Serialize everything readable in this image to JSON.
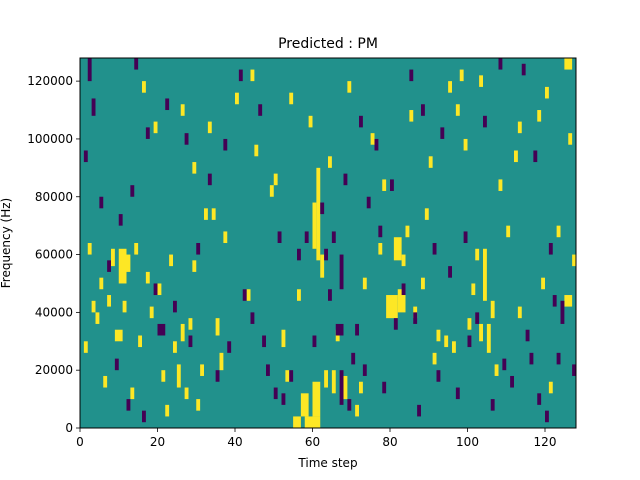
{
  "chart_data": {
    "type": "heatmap",
    "title": "Predicted : PM",
    "xlabel": "Time step",
    "ylabel": "Frequency (Hz)",
    "xlim": [
      0,
      128
    ],
    "ylim": [
      0,
      128000
    ],
    "x_ticks": [
      0,
      20,
      40,
      60,
      80,
      100,
      120
    ],
    "x_tick_labels": [
      "0",
      "20",
      "40",
      "60",
      "80",
      "100",
      "120"
    ],
    "y_ticks": [
      0,
      20000,
      40000,
      60000,
      80000,
      100000,
      120000
    ],
    "y_tick_labels": [
      "0",
      "20000",
      "40000",
      "60000",
      "80000",
      "100000",
      "120000"
    ],
    "colormap": "viridis",
    "background_color": "#21918c",
    "low_color": "#440154",
    "high_color": "#fde725",
    "grid": false,
    "cells": {
      "high": [
        [
          57,
          4000,
          2,
          8000
        ],
        [
          60,
          4000,
          2,
          12000
        ],
        [
          58,
          0,
          4,
          4000
        ],
        [
          55,
          0,
          2,
          4000
        ],
        [
          61,
          58000,
          1,
          32000
        ],
        [
          60,
          62000,
          1,
          16000
        ],
        [
          62,
          52000,
          1,
          8000
        ],
        [
          68,
          10000,
          1,
          8000
        ],
        [
          71,
          4000,
          1,
          4000
        ],
        [
          65,
          12000,
          1,
          8000
        ],
        [
          63,
          14000,
          1,
          6000
        ],
        [
          79,
          38000,
          3,
          8000
        ],
        [
          82,
          40000,
          2,
          8000
        ],
        [
          81,
          58000,
          2,
          8000
        ],
        [
          83,
          56000,
          1,
          4000
        ],
        [
          104,
          44000,
          1,
          18000
        ],
        [
          105,
          26000,
          1,
          10000
        ],
        [
          106,
          38000,
          1,
          6000
        ],
        [
          103,
          30000,
          1,
          6000
        ],
        [
          10,
          50000,
          2,
          12000
        ],
        [
          12,
          54000,
          1,
          6000
        ],
        [
          8,
          56000,
          1,
          6000
        ],
        [
          9,
          30000,
          2,
          4000
        ],
        [
          11,
          40000,
          1,
          4000
        ],
        [
          7,
          42000,
          1,
          4000
        ],
        [
          25,
          14000,
          1,
          8000
        ],
        [
          26,
          30000,
          1,
          6000
        ],
        [
          27,
          10000,
          1,
          4000
        ],
        [
          24,
          26000,
          1,
          4000
        ],
        [
          125,
          124000,
          2,
          4000
        ],
        [
          125,
          42000,
          2,
          4000
        ],
        [
          98,
          120000,
          1,
          4000
        ],
        [
          84,
          66000,
          1,
          4000
        ],
        [
          91,
          22000,
          1,
          4000
        ],
        [
          36,
          20000,
          1,
          6000
        ],
        [
          35,
          32000,
          1,
          6000
        ],
        [
          43,
          44000,
          1,
          4000
        ],
        [
          52,
          28000,
          1,
          6000
        ],
        [
          53,
          16000,
          1,
          4000
        ],
        [
          72,
          12000,
          1,
          4000
        ],
        [
          29,
          54000,
          1,
          4000
        ],
        [
          31,
          18000,
          1,
          4000
        ],
        [
          94,
          28000,
          1,
          4000
        ],
        [
          3,
          40000,
          1,
          4000
        ],
        [
          5,
          48000,
          1,
          4000
        ],
        [
          14,
          60000,
          1,
          4000
        ],
        [
          17,
          50000,
          1,
          4000
        ],
        [
          20,
          46000,
          1,
          4000
        ],
        [
          23,
          56000,
          1,
          4000
        ],
        [
          32,
          72000,
          1,
          4000
        ],
        [
          34,
          72000,
          1,
          4000
        ],
        [
          37,
          64000,
          1,
          4000
        ],
        [
          45,
          94000,
          1,
          4000
        ],
        [
          49,
          80000,
          1,
          4000
        ],
        [
          56,
          44000,
          1,
          4000
        ],
        [
          66,
          30000,
          1,
          4000
        ],
        [
          73,
          48000,
          1,
          4000
        ],
        [
          77,
          60000,
          1,
          4000
        ],
        [
          86,
          38000,
          1,
          4000
        ],
        [
          88,
          48000,
          1,
          4000
        ],
        [
          89,
          72000,
          1,
          4000
        ],
        [
          92,
          30000,
          1,
          4000
        ],
        [
          96,
          26000,
          1,
          4000
        ],
        [
          100,
          34000,
          1,
          4000
        ],
        [
          101,
          46000,
          1,
          4000
        ],
        [
          102,
          58000,
          1,
          4000
        ],
        [
          107,
          18000,
          1,
          4000
        ],
        [
          110,
          66000,
          1,
          4000
        ],
        [
          113,
          38000,
          1,
          4000
        ],
        [
          119,
          48000,
          1,
          4000
        ],
        [
          121,
          12000,
          1,
          4000
        ],
        [
          123,
          66000,
          1,
          4000
        ],
        [
          127,
          56000,
          1,
          4000
        ],
        [
          97,
          108000,
          1,
          4000
        ],
        [
          99,
          96000,
          1,
          4000
        ],
        [
          108,
          82000,
          1,
          4000
        ],
        [
          112,
          92000,
          1,
          4000
        ],
        [
          118,
          106000,
          1,
          4000
        ],
        [
          126,
          98000,
          1,
          4000
        ],
        [
          16,
          116000,
          1,
          4000
        ],
        [
          19,
          102000,
          1,
          4000
        ],
        [
          26,
          108000,
          1,
          4000
        ],
        [
          29,
          88000,
          1,
          4000
        ],
        [
          33,
          102000,
          1,
          4000
        ],
        [
          40,
          112000,
          1,
          4000
        ],
        [
          44,
          120000,
          1,
          4000
        ],
        [
          50,
          84000,
          1,
          4000
        ],
        [
          54,
          112000,
          1,
          4000
        ],
        [
          59,
          104000,
          1,
          4000
        ],
        [
          64,
          90000,
          1,
          4000
        ],
        [
          69,
          116000,
          1,
          4000
        ],
        [
          75,
          98000,
          1,
          4000
        ],
        [
          78,
          82000,
          1,
          4000
        ],
        [
          85,
          106000,
          1,
          4000
        ],
        [
          90,
          90000,
          1,
          4000
        ],
        [
          95,
          116000,
          1,
          4000
        ],
        [
          103,
          118000,
          1,
          4000
        ],
        [
          113,
          102000,
          1,
          4000
        ],
        [
          120,
          114000,
          1,
          4000
        ],
        [
          1,
          26000,
          1,
          4000
        ],
        [
          2,
          60000,
          1,
          4000
        ],
        [
          4,
          36000,
          1,
          4000
        ],
        [
          6,
          14000,
          1,
          4000
        ],
        [
          13,
          10000,
          1,
          4000
        ],
        [
          15,
          28000,
          1,
          4000
        ],
        [
          18,
          38000,
          1,
          4000
        ],
        [
          21,
          16000,
          1,
          4000
        ],
        [
          22,
          4000,
          1,
          4000
        ],
        [
          28,
          34000,
          1,
          4000
        ],
        [
          30,
          6000,
          1,
          4000
        ]
      ],
      "low": [
        [
          67,
          8000,
          1,
          12000
        ],
        [
          69,
          6000,
          1,
          4000
        ],
        [
          66,
          32000,
          2,
          4000
        ],
        [
          67,
          48000,
          1,
          12000
        ],
        [
          54,
          16000,
          1,
          4000
        ],
        [
          70,
          22000,
          1,
          4000
        ],
        [
          63,
          58000,
          1,
          4000
        ],
        [
          65,
          64000,
          1,
          4000
        ],
        [
          20,
          32000,
          2,
          4000
        ],
        [
          124,
          36000,
          1,
          8000
        ],
        [
          122,
          42000,
          1,
          4000
        ],
        [
          2,
          120000,
          1,
          8000
        ],
        [
          3,
          108000,
          1,
          6000
        ],
        [
          1,
          92000,
          1,
          4000
        ],
        [
          86,
          36000,
          1,
          4000
        ],
        [
          28,
          28000,
          1,
          4000
        ],
        [
          42,
          44000,
          1,
          4000
        ],
        [
          44,
          36000,
          1,
          4000
        ],
        [
          47,
          28000,
          1,
          4000
        ],
        [
          48,
          18000,
          1,
          4000
        ],
        [
          50,
          10000,
          1,
          4000
        ],
        [
          52,
          8000,
          1,
          4000
        ],
        [
          58,
          64000,
          1,
          4000
        ],
        [
          62,
          74000,
          1,
          4000
        ],
        [
          68,
          84000,
          1,
          4000
        ],
        [
          74,
          76000,
          1,
          4000
        ],
        [
          76,
          96000,
          1,
          4000
        ],
        [
          80,
          82000,
          1,
          4000
        ],
        [
          85,
          120000,
          1,
          4000
        ],
        [
          88,
          108000,
          1,
          4000
        ],
        [
          93,
          100000,
          1,
          4000
        ],
        [
          99,
          64000,
          1,
          4000
        ],
        [
          104,
          104000,
          1,
          4000
        ],
        [
          108,
          124000,
          1,
          4000
        ],
        [
          114,
          122000,
          1,
          4000
        ],
        [
          117,
          92000,
          1,
          4000
        ],
        [
          121,
          60000,
          1,
          4000
        ],
        [
          127,
          18000,
          1,
          4000
        ],
        [
          14,
          124000,
          1,
          4000
        ],
        [
          17,
          100000,
          1,
          4000
        ],
        [
          22,
          110000,
          1,
          4000
        ],
        [
          27,
          98000,
          1,
          4000
        ],
        [
          33,
          84000,
          1,
          4000
        ],
        [
          37,
          96000,
          1,
          4000
        ],
        [
          41,
          120000,
          1,
          4000
        ],
        [
          46,
          108000,
          1,
          4000
        ],
        [
          51,
          64000,
          1,
          4000
        ],
        [
          56,
          58000,
          1,
          4000
        ],
        [
          72,
          104000,
          1,
          4000
        ],
        [
          77,
          66000,
          1,
          4000
        ],
        [
          83,
          46000,
          1,
          4000
        ],
        [
          91,
          60000,
          1,
          4000
        ],
        [
          95,
          52000,
          1,
          4000
        ],
        [
          100,
          28000,
          1,
          4000
        ],
        [
          109,
          20000,
          1,
          4000
        ],
        [
          115,
          30000,
          1,
          4000
        ],
        [
          118,
          8000,
          1,
          4000
        ],
        [
          123,
          22000,
          1,
          4000
        ],
        [
          9,
          20000,
          1,
          4000
        ],
        [
          12,
          6000,
          1,
          4000
        ],
        [
          16,
          2000,
          1,
          4000
        ],
        [
          19,
          46000,
          1,
          4000
        ],
        [
          24,
          40000,
          1,
          4000
        ],
        [
          30,
          60000,
          1,
          4000
        ],
        [
          35,
          16000,
          1,
          4000
        ],
        [
          38,
          26000,
          1,
          4000
        ],
        [
          60,
          28000,
          1,
          4000
        ],
        [
          64,
          44000,
          1,
          4000
        ],
        [
          71,
          32000,
          1,
          4000
        ],
        [
          73,
          18000,
          1,
          4000
        ],
        [
          78,
          12000,
          1,
          4000
        ],
        [
          81,
          34000,
          1,
          4000
        ],
        [
          87,
          4000,
          1,
          4000
        ],
        [
          92,
          16000,
          1,
          4000
        ],
        [
          97,
          10000,
          1,
          4000
        ],
        [
          102,
          36000,
          1,
          4000
        ],
        [
          106,
          6000,
          1,
          4000
        ],
        [
          111,
          14000,
          1,
          4000
        ],
        [
          116,
          22000,
          1,
          4000
        ],
        [
          120,
          2000,
          1,
          4000
        ],
        [
          5,
          76000,
          1,
          4000
        ],
        [
          7,
          54000,
          1,
          4000
        ],
        [
          10,
          70000,
          1,
          4000
        ],
        [
          13,
          80000,
          1,
          4000
        ]
      ]
    }
  }
}
